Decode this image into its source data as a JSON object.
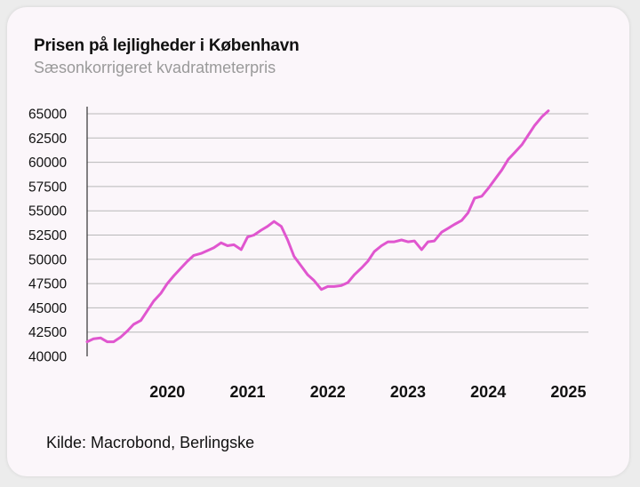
{
  "title": "Prisen på lejligheder i København",
  "subtitle": "Sæsonkorrigeret kvadratmeterpris",
  "source": "Kilde: Macrobond, Berlingske",
  "colors": {
    "line": "#e056cf",
    "grid": "#b8b8b8",
    "card": "#fbf6fa"
  },
  "chart_data": {
    "type": "line",
    "title": "Prisen på lejligheder i København",
    "subtitle": "Sæsonkorrigeret kvadratmeterpris",
    "xlabel": "",
    "ylabel": "",
    "ylim": [
      40000,
      65000
    ],
    "xlim": [
      2019.5,
      2025.75
    ],
    "yticks": [
      40000,
      42500,
      45000,
      47500,
      50000,
      52500,
      55000,
      57500,
      60000,
      62500,
      65000
    ],
    "xticks": [
      2020,
      2021,
      2022,
      2023,
      2024,
      2025
    ],
    "grid": true,
    "series": [
      {
        "name": "Kvadratmeterpris",
        "x": [
          2019.5,
          2019.58,
          2019.67,
          2019.75,
          2019.83,
          2019.92,
          2020.0,
          2020.08,
          2020.17,
          2020.25,
          2020.33,
          2020.42,
          2020.5,
          2020.58,
          2020.67,
          2020.75,
          2020.83,
          2020.92,
          2021.0,
          2021.08,
          2021.17,
          2021.25,
          2021.33,
          2021.42,
          2021.5,
          2021.58,
          2021.67,
          2021.75,
          2021.83,
          2021.92,
          2022.0,
          2022.08,
          2022.17,
          2022.25,
          2022.33,
          2022.42,
          2022.5,
          2022.58,
          2022.67,
          2022.75,
          2022.83,
          2022.92,
          2023.0,
          2023.08,
          2023.17,
          2023.25,
          2023.33,
          2023.42,
          2023.5,
          2023.58,
          2023.67,
          2023.75,
          2023.83,
          2023.92,
          2024.0,
          2024.08,
          2024.17,
          2024.25,
          2024.33,
          2024.42,
          2024.5,
          2024.58,
          2024.67,
          2024.75,
          2024.83,
          2024.92,
          2025.0,
          2025.08,
          2025.17,
          2025.25
        ],
        "values": [
          41500,
          41800,
          41900,
          41500,
          41500,
          42000,
          42600,
          43300,
          43700,
          44700,
          45700,
          46500,
          47500,
          48300,
          49100,
          49800,
          50400,
          50600,
          50900,
          51200,
          51700,
          51400,
          51500,
          51000,
          52300,
          52500,
          53000,
          53400,
          53900,
          53400,
          52000,
          50300,
          49300,
          48400,
          47800,
          46900,
          47200,
          47200,
          47300,
          47600,
          48400,
          49100,
          49800,
          50800,
          51400,
          51800,
          51800,
          52000,
          51800,
          51900,
          51000,
          51800,
          51900,
          52800,
          53200,
          53600,
          54000,
          54800,
          56300,
          56500,
          57300,
          58200,
          59200,
          60300,
          61000,
          61800,
          62800,
          63800,
          64700,
          65300
        ]
      }
    ]
  }
}
